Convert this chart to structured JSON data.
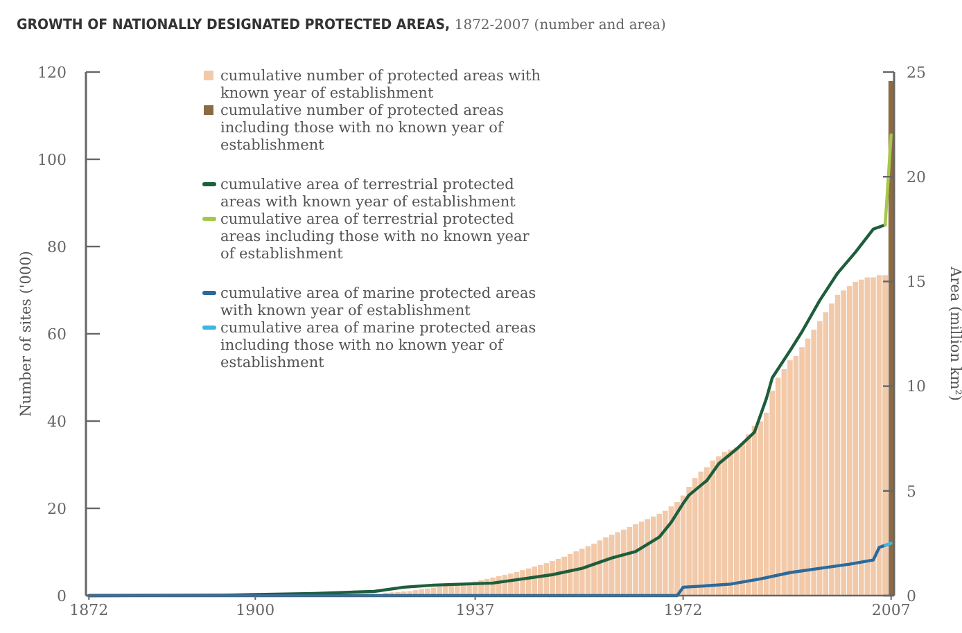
{
  "chart_data": {
    "type": "bar",
    "title": "GROWTH OF NATIONALLY DESIGNATED PROTECTED AREAS,",
    "subtitle": "1872-2007 (number and area)",
    "ylabel": "Number of sites ('000)",
    "y2label": "Area (million km²)",
    "xlim": [
      1871.5,
      2007.5
    ],
    "xticks": [
      1872,
      1900,
      1937,
      1972,
      2007
    ],
    "ylim": [
      0,
      120
    ],
    "yticks": [
      0,
      20,
      40,
      60,
      80,
      100,
      120
    ],
    "y2lim": [
      0,
      25
    ],
    "y2ticks": [
      0,
      5,
      10,
      15,
      20,
      25
    ],
    "grid": false,
    "legend": "top",
    "marker": "none",
    "line_style": "solid",
    "series": [
      {
        "name": "cumulative number of protected areas with known year of establishment",
        "color": "#f2c9a9",
        "x": [
          1922,
          1923,
          1924,
          1925,
          1926,
          1927,
          1928,
          1929,
          1930,
          1931,
          1932,
          1933,
          1934,
          1935,
          1936,
          1937,
          1938,
          1939,
          1940,
          1941,
          1942,
          1943,
          1944,
          1945,
          1946,
          1947,
          1948,
          1949,
          1950,
          1951,
          1952,
          1953,
          1954,
          1955,
          1956,
          1957,
          1958,
          1959,
          1960,
          1961,
          1962,
          1963,
          1964,
          1965,
          1966,
          1967,
          1968,
          1969,
          1970,
          1971,
          1972,
          1973,
          1974,
          1975,
          1976,
          1977,
          1978,
          1979,
          1980,
          1981,
          1982,
          1983,
          1984,
          1985,
          1986,
          1987,
          1988,
          1989,
          1990,
          1991,
          1992,
          1993,
          1994,
          1995,
          1996,
          1997,
          1998,
          1999,
          2000,
          2001,
          2002,
          2003,
          2004,
          2005,
          2006
        ],
        "values": [
          0.7,
          0.8,
          0.9,
          1.0,
          1.1,
          1.3,
          1.5,
          1.7,
          1.9,
          2.1,
          2.3,
          2.5,
          2.7,
          2.9,
          3.1,
          3.3,
          3.6,
          3.9,
          4.2,
          4.5,
          4.8,
          5.1,
          5.5,
          5.9,
          6.3,
          6.7,
          7.1,
          7.5,
          8,
          8.5,
          9,
          9.6,
          10.2,
          10.8,
          11.4,
          12,
          12.7,
          13.4,
          14,
          14.6,
          15.2,
          15.8,
          16.4,
          17,
          17.6,
          18.2,
          18.8,
          19.5,
          20.5,
          21.5,
          23,
          25,
          27,
          28.5,
          29.5,
          31,
          32,
          33,
          33.5,
          34,
          35,
          37,
          39,
          40,
          42,
          47,
          50,
          52,
          54,
          55,
          57,
          59,
          61,
          63,
          65,
          67,
          69,
          70,
          71,
          72,
          72.5,
          73,
          73,
          73.5,
          73.5
        ]
      },
      {
        "name": "cumulative number of protected areas including those with no known year of establishment",
        "color": "#8c6a42",
        "x": [
          2007
        ],
        "values": [
          118
        ]
      },
      {
        "name": "cumulative area of terrestrial protected areas with known year of establishment",
        "type": "line",
        "axis": "y2",
        "color": "#1e5e3c",
        "x": [
          1872,
          1895,
          1900,
          1910,
          1920,
          1925,
          1930,
          1935,
          1940,
          1945,
          1950,
          1955,
          1960,
          1964,
          1968,
          1970,
          1972,
          1973,
          1976,
          1978,
          1981,
          1984,
          1986,
          1987,
          1990,
          1992,
          1995,
          1998,
          2001,
          2004,
          2006
        ],
        "values": [
          0,
          0.02,
          0.05,
          0.1,
          0.2,
          0.4,
          0.5,
          0.55,
          0.6,
          0.8,
          1.0,
          1.3,
          1.8,
          2.1,
          2.8,
          3.5,
          4.4,
          4.8,
          5.5,
          6.3,
          7.0,
          7.8,
          9.4,
          10.4,
          11.7,
          12.6,
          14.1,
          15.4,
          16.4,
          17.5,
          17.7
        ]
      },
      {
        "name": "cumulative area of terrestrial protected areas including those with no known year of establishment",
        "type": "line",
        "axis": "y2",
        "color": "#a6c84a",
        "x": [
          2006,
          2007
        ],
        "values": [
          17.7,
          22
        ]
      },
      {
        "name": "cumulative area of marine protected areas with known year of establishment",
        "type": "line",
        "axis": "y2",
        "color": "#2a6a9c",
        "x": [
          1872,
          1971,
          1972,
          1975,
          1980,
          1985,
          1990,
          1995,
          2000,
          2004,
          2005,
          2006
        ],
        "values": [
          0,
          0,
          0.4,
          0.45,
          0.55,
          0.8,
          1.1,
          1.3,
          1.5,
          1.7,
          2.3,
          2.4
        ]
      },
      {
        "name": "cumulative area of marine protected areas including those with no known year of establishment",
        "type": "line",
        "axis": "y2",
        "color": "#3cb8e0",
        "x": [
          2006,
          2007
        ],
        "values": [
          2.4,
          2.5
        ]
      }
    ]
  }
}
